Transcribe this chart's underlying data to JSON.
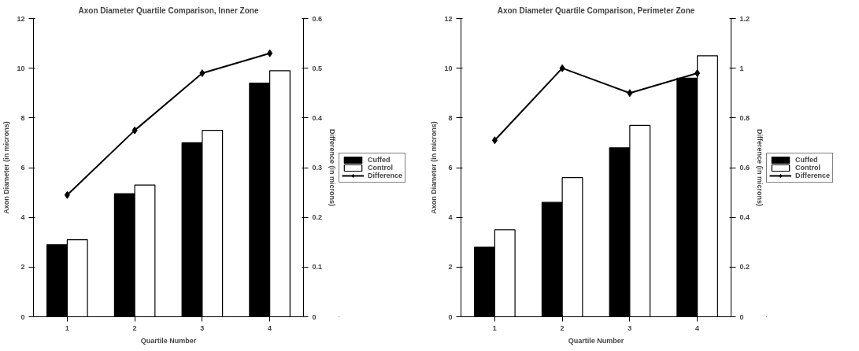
{
  "chart_data": [
    {
      "type": "bar",
      "title": "Axon Diameter Quartile Comparison, Inner Zone",
      "xlabel": "Quartile Number",
      "ylabel": "Axon Diameter (in microns)",
      "y2label": "Difference (in microns)",
      "categories": [
        "1",
        "2",
        "3",
        "4"
      ],
      "series": [
        {
          "name": "Cuffed",
          "color": "#000000",
          "values": [
            2.9,
            4.95,
            7.0,
            9.4
          ]
        },
        {
          "name": "Control",
          "color": "#ffffff",
          "values": [
            3.1,
            5.3,
            7.5,
            9.9
          ]
        },
        {
          "name": "Difference",
          "type": "line",
          "axis": "y2",
          "color": "#000000",
          "values": [
            0.245,
            0.375,
            0.49,
            0.53
          ]
        }
      ],
      "ylim": [
        0,
        12
      ],
      "yticks": [
        0,
        2,
        4,
        6,
        8,
        10,
        12
      ],
      "y2lim": [
        0,
        0.6
      ],
      "y2ticks": [
        0,
        0.1,
        0.2,
        0.3,
        0.4,
        0.5,
        0.6
      ],
      "grid": false,
      "legend": "right",
      "marker": "diamond",
      "line_style": "solid"
    },
    {
      "type": "bar",
      "title": "Axon Diameter Quartile Comparison, Perimeter Zone",
      "xlabel": "Quartile Number",
      "ylabel": "Axon Diameter (in microns)",
      "y2label": "Difference (in microns)",
      "categories": [
        "1",
        "2",
        "3",
        "4"
      ],
      "series": [
        {
          "name": "Cuffed",
          "color": "#000000",
          "values": [
            2.8,
            4.6,
            6.8,
            9.6
          ]
        },
        {
          "name": "Control",
          "color": "#ffffff",
          "values": [
            3.5,
            5.6,
            7.7,
            10.5
          ]
        },
        {
          "name": "Difference",
          "type": "line",
          "axis": "y2",
          "color": "#000000",
          "values": [
            0.71,
            1.0,
            0.9,
            0.98
          ]
        }
      ],
      "ylim": [
        0,
        12
      ],
      "yticks": [
        0,
        2,
        4,
        6,
        8,
        10,
        12
      ],
      "y2lim": [
        0,
        1.2
      ],
      "y2ticks": [
        0,
        0.2,
        0.4,
        0.6,
        0.8,
        1,
        1.2
      ],
      "grid": false,
      "legend": "right",
      "marker": "diamond",
      "line_style": "solid"
    }
  ]
}
